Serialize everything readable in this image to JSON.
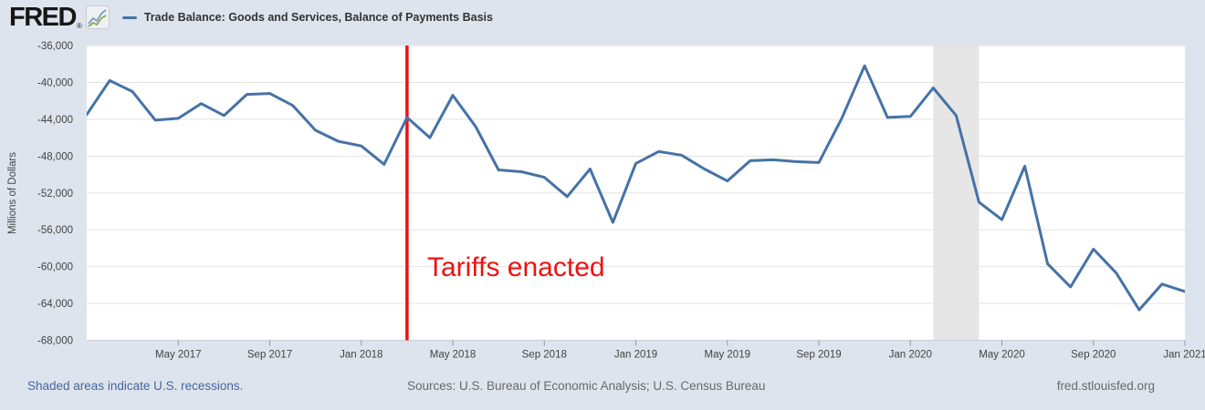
{
  "header": {
    "logo_text": "FRED",
    "registered_mark": "®",
    "legend_label": "Trade Balance: Goods and Services, Balance of Payments Basis"
  },
  "annotation": {
    "text": "Tariffs enacted"
  },
  "footer": {
    "recession_note": "Shaded areas indicate U.S. recessions.",
    "sources": "Sources: U.S. Bureau of Economic Analysis; U.S. Census Bureau",
    "site": "fred.stlouisfed.org"
  },
  "y_axis": {
    "label": "Millions of Dollars",
    "tick_labels": [
      "-36,000",
      "-40,000",
      "-44,000",
      "-48,000",
      "-52,000",
      "-56,000",
      "-60,000",
      "-64,000",
      "-68,000"
    ],
    "tick_values": [
      -36000,
      -40000,
      -44000,
      -48000,
      -52000,
      -56000,
      -60000,
      -64000,
      -68000
    ]
  },
  "x_axis": {
    "ticks": [
      {
        "label": "May 2017",
        "month_index": 4
      },
      {
        "label": "Sep 2017",
        "month_index": 8
      },
      {
        "label": "Jan 2018",
        "month_index": 12
      },
      {
        "label": "May 2018",
        "month_index": 16
      },
      {
        "label": "Sep 2018",
        "month_index": 20
      },
      {
        "label": "Jan 2019",
        "month_index": 24
      },
      {
        "label": "May 2019",
        "month_index": 28
      },
      {
        "label": "Sep 2019",
        "month_index": 32
      },
      {
        "label": "Jan 2020",
        "month_index": 36
      },
      {
        "label": "May 2020",
        "month_index": 40
      },
      {
        "label": "Sep 2020",
        "month_index": 44
      },
      {
        "label": "Jan 2021",
        "month_index": 48
      }
    ]
  },
  "chart_data": {
    "type": "line",
    "title": "Trade Balance: Goods and Services, Balance of Payments Basis",
    "ylabel": "Millions of Dollars",
    "ylim": [
      -68000,
      -36000
    ],
    "frequency": "monthly",
    "x": [
      "2017-01",
      "2017-02",
      "2017-03",
      "2017-04",
      "2017-05",
      "2017-06",
      "2017-07",
      "2017-08",
      "2017-09",
      "2017-10",
      "2017-11",
      "2017-12",
      "2018-01",
      "2018-02",
      "2018-03",
      "2018-04",
      "2018-05",
      "2018-06",
      "2018-07",
      "2018-08",
      "2018-09",
      "2018-10",
      "2018-11",
      "2018-12",
      "2019-01",
      "2019-02",
      "2019-03",
      "2019-04",
      "2019-05",
      "2019-06",
      "2019-07",
      "2019-08",
      "2019-09",
      "2019-10",
      "2019-11",
      "2019-12",
      "2020-01",
      "2020-02",
      "2020-03",
      "2020-04",
      "2020-05",
      "2020-06",
      "2020-07",
      "2020-08",
      "2020-09",
      "2020-10",
      "2020-11",
      "2020-12",
      "2021-01"
    ],
    "values": [
      -43500,
      -39800,
      -41000,
      -44100,
      -43900,
      -42300,
      -43600,
      -41300,
      -41200,
      -42500,
      -45200,
      -46400,
      -46900,
      -48900,
      -43800,
      -46000,
      -41400,
      -44800,
      -49500,
      -49700,
      -50300,
      -52400,
      -49400,
      -55200,
      -48800,
      -47500,
      -47900,
      -49400,
      -50700,
      -48500,
      -48400,
      -48600,
      -48700,
      -43900,
      -38200,
      -43800,
      -43700,
      -40600,
      -43600,
      -53000,
      -54900,
      -49100,
      -59700,
      -62200,
      -58100,
      -60700,
      -64700,
      -61900,
      -62700
    ],
    "annotation_line": {
      "x": "2018-03",
      "month_index": 14,
      "label": "Tariffs enacted"
    },
    "recession_shading": {
      "start": "2020-02",
      "end": "2020-04",
      "start_index": 37,
      "end_index": 39
    },
    "legend_position": "top",
    "grid": "horizontal"
  },
  "colors": {
    "background": "#dde4ed",
    "plot_background": "#ffffff",
    "gridline": "#e3e3e3",
    "axis_line": "#c9ced5",
    "tick_mark": "#8f9aa6",
    "tick_text": "#444444",
    "series_line": "#4572a7",
    "annotation_red": "#ee1111",
    "recession_band": "#e6e6e6",
    "link_blue": "#46669c",
    "footer_gray": "#6a6a6a"
  }
}
